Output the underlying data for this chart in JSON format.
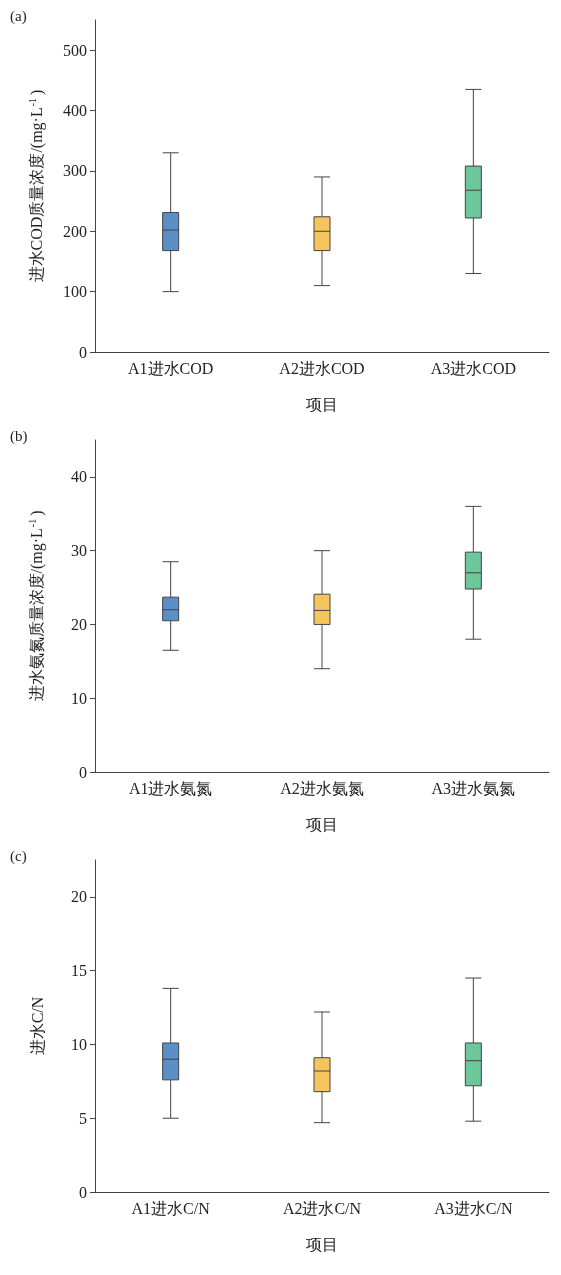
{
  "chart_data": [
    {
      "type": "box",
      "annotations": [
        "(a)"
      ],
      "xlabel": "项目",
      "ylabel": "进水COD质量浓度/(mg·L$^{-1}$)",
      "categories": [
        "A1进水COD",
        "A2进水COD",
        "A3进水COD"
      ],
      "colors": [
        "#5b8fc8",
        "#f4c55c",
        "#6cc79a"
      ],
      "ylim": [
        0,
        550
      ],
      "yticks": [
        0,
        100,
        200,
        300,
        400,
        500
      ],
      "grid": false,
      "boxes": [
        {
          "low": 100,
          "q1": 168,
          "median": 202,
          "q3": 231,
          "high": 330
        },
        {
          "low": 110,
          "q1": 168,
          "median": 200,
          "q3": 224,
          "high": 290
        },
        {
          "low": 130,
          "q1": 222,
          "median": 268,
          "q3": 308,
          "high": 435
        }
      ]
    },
    {
      "type": "box",
      "annotations": [
        "(b)"
      ],
      "xlabel": "项目",
      "ylabel": "进水氨氮质量浓度/(mg·L$^{-1}$)",
      "categories": [
        "A1进水氨氮",
        "A2进水氨氮",
        "A3进水氨氮"
      ],
      "colors": [
        "#5b8fc8",
        "#f4c55c",
        "#6cc79a"
      ],
      "ylim": [
        0,
        45
      ],
      "yticks": [
        0,
        10,
        20,
        30,
        40
      ],
      "grid": false,
      "boxes": [
        {
          "low": 16.5,
          "q1": 20.5,
          "median": 22,
          "q3": 23.7,
          "high": 28.5
        },
        {
          "low": 14,
          "q1": 20,
          "median": 21.9,
          "q3": 24.1,
          "high": 30
        },
        {
          "low": 18,
          "q1": 24.8,
          "median": 27,
          "q3": 29.8,
          "high": 36
        }
      ]
    },
    {
      "type": "box",
      "annotations": [
        "(c)"
      ],
      "xlabel": "项目",
      "ylabel": "进水C/N",
      "categories": [
        "A1进水C/N",
        "A2进水C/N",
        "A3进水C/N"
      ],
      "colors": [
        "#5b8fc8",
        "#f4c55c",
        "#6cc79a"
      ],
      "ylim": [
        0,
        22.5
      ],
      "yticks": [
        0,
        5,
        10,
        15,
        20
      ],
      "grid": false,
      "boxes": [
        {
          "low": 5,
          "q1": 7.6,
          "median": 9,
          "q3": 10.1,
          "high": 13.8
        },
        {
          "low": 4.7,
          "q1": 6.8,
          "median": 8.2,
          "q3": 9.1,
          "high": 12.2
        },
        {
          "low": 4.8,
          "q1": 7.2,
          "median": 8.9,
          "q3": 10.1,
          "high": 14.5
        }
      ]
    }
  ]
}
